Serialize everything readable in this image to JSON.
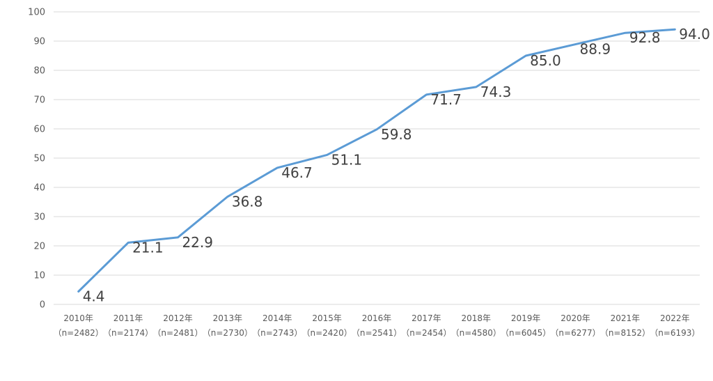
{
  "chart_data": {
    "type": "line",
    "title": "",
    "xlabel": "",
    "ylabel": "",
    "ylim": [
      0,
      100
    ],
    "y_ticks": [
      0,
      10,
      20,
      30,
      40,
      50,
      60,
      70,
      80,
      90,
      100
    ],
    "grid": true,
    "legend": "none",
    "categories": [
      {
        "year": "2010年",
        "n": "（n=2482）"
      },
      {
        "year": "2011年",
        "n": "（n=2174）"
      },
      {
        "year": "2012年",
        "n": "（n=2481）"
      },
      {
        "year": "2013年",
        "n": "（n=2730）"
      },
      {
        "year": "2014年",
        "n": "（n=2743）"
      },
      {
        "year": "2015年",
        "n": "（n=2420）"
      },
      {
        "year": "2016年",
        "n": "（n=2541）"
      },
      {
        "year": "2017年",
        "n": "（n=2454）"
      },
      {
        "year": "2018年",
        "n": "（n=4580）"
      },
      {
        "year": "2019年",
        "n": "（n=6045）"
      },
      {
        "year": "2020年",
        "n": "（n=6277）"
      },
      {
        "year": "2021年",
        "n": "（n=8152）"
      },
      {
        "year": "2022年",
        "n": "（n=6193）"
      }
    ],
    "series": [
      {
        "color": "#5b9bd5",
        "values": [
          4.4,
          21.1,
          22.9,
          36.8,
          46.7,
          51.1,
          59.8,
          71.7,
          74.3,
          85.0,
          88.9,
          92.8,
          94.0
        ],
        "labels": [
          "4.4",
          "21.1",
          "22.9",
          "36.8",
          "46.7",
          "51.1",
          "59.8",
          "71.7",
          "74.3",
          "85.0",
          "88.9",
          "92.8",
          "94.0"
        ]
      }
    ]
  }
}
